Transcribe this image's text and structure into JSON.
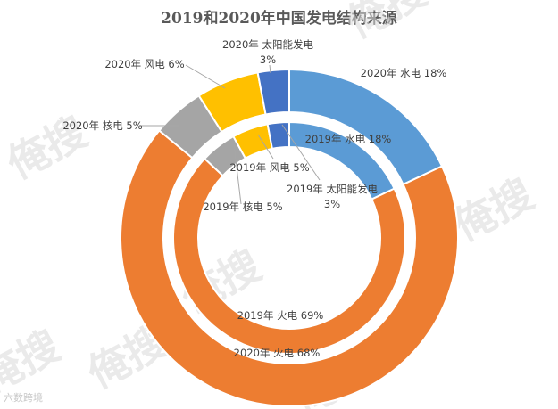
{
  "chart_data": {
    "type": "pie",
    "subtype": "nested-donut",
    "title": "2019和2020年中国发电结构来源",
    "rings": [
      {
        "name": "2019",
        "position": "inner",
        "categories": [
          "水电",
          "火电",
          "核电",
          "风电",
          "太阳能发电"
        ],
        "values": [
          18,
          69,
          5,
          5,
          3
        ],
        "labels": [
          "2019年 水电 18%",
          "2019年 火电 69%",
          "2019年 核电 5%",
          "2019年 风电 5%",
          [
            "2019年 太阳能发电",
            "3%"
          ]
        ]
      },
      {
        "name": "2020",
        "position": "outer",
        "categories": [
          "水电",
          "火电",
          "核电",
          "风电",
          "太阳能发电"
        ],
        "values": [
          18,
          68,
          5,
          6,
          3
        ],
        "labels": [
          "2020年 水电 18%",
          "2020年 火电 68%",
          "2020年 核电 5%",
          "2020年 风电 6%",
          [
            "2020年 太阳能发电",
            "3%"
          ]
        ]
      }
    ],
    "colors": {
      "水电": "#5b9bd5",
      "火电": "#ed7d31",
      "核电": "#a5a5a5",
      "风电": "#ffc000",
      "太阳能发电": "#4472c4"
    },
    "legend": "none",
    "start_angle_deg": 0,
    "direction": "clockwise"
  },
  "watermark": {
    "text": "俺搜",
    "color": "#d9d9d9",
    "source_text": "六数跨境"
  }
}
